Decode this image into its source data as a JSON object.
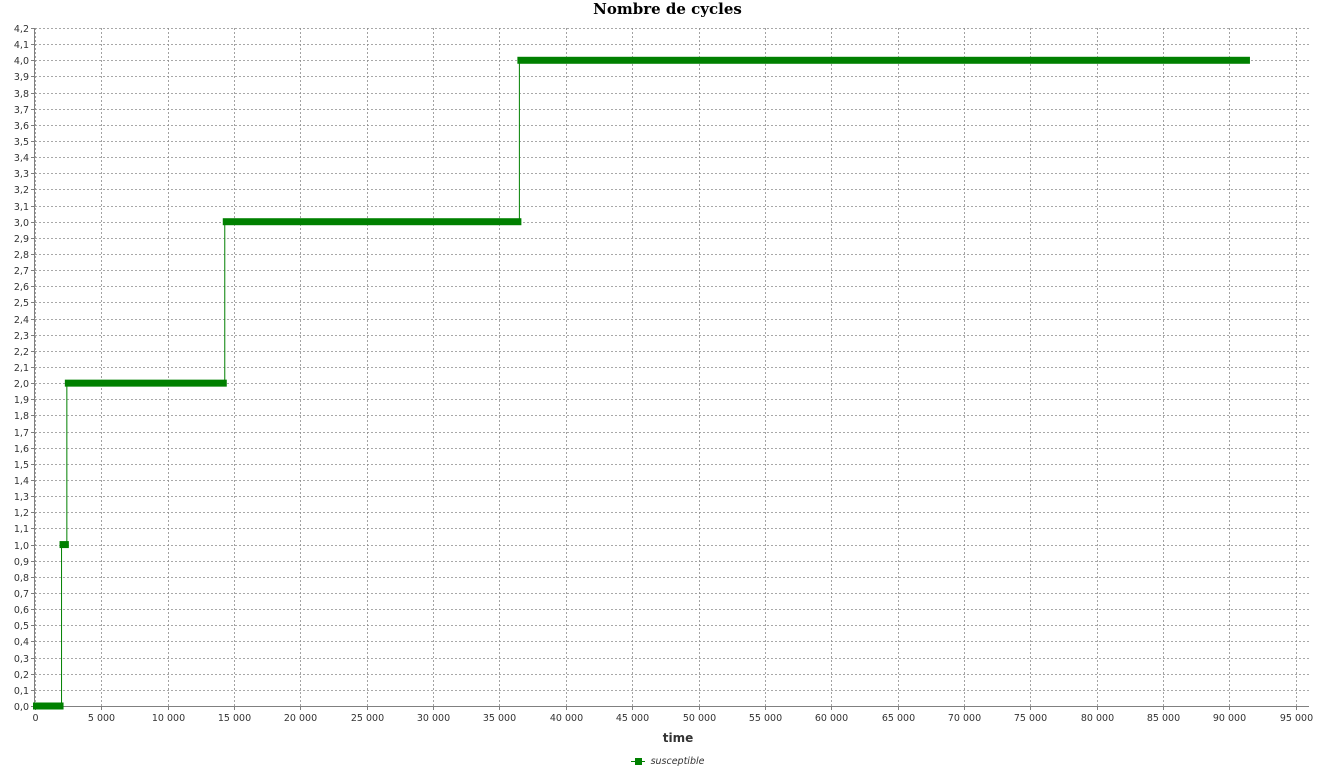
{
  "chart_data": {
    "type": "line",
    "title": "Nombre de cycles",
    "xlabel": "time",
    "ylabel": "",
    "xlim": [
      0,
      96000
    ],
    "ylim": [
      0,
      4.2
    ],
    "x_ticks": [
      0,
      5000,
      10000,
      15000,
      20000,
      25000,
      30000,
      35000,
      40000,
      45000,
      50000,
      55000,
      60000,
      65000,
      70000,
      75000,
      80000,
      85000,
      90000,
      95000
    ],
    "x_tick_labels": [
      "0",
      "5 000",
      "10 000",
      "15 000",
      "20 000",
      "25 000",
      "30 000",
      "35 000",
      "40 000",
      "45 000",
      "50 000",
      "55 000",
      "60 000",
      "65 000",
      "70 000",
      "75 000",
      "80 000",
      "85 000",
      "90 000",
      "95 000"
    ],
    "y_ticks": [
      0,
      0.1,
      0.2,
      0.3,
      0.4,
      0.5,
      0.6,
      0.7,
      0.8,
      0.9,
      1.0,
      1.1,
      1.2,
      1.3,
      1.4,
      1.5,
      1.6,
      1.7,
      1.8,
      1.9,
      2.0,
      2.1,
      2.2,
      2.3,
      2.4,
      2.5,
      2.6,
      2.7,
      2.8,
      2.9,
      3.0,
      3.1,
      3.2,
      3.3,
      3.4,
      3.5,
      3.6,
      3.7,
      3.8,
      3.9,
      4.0,
      4.1,
      4.2
    ],
    "y_tick_labels": [
      "0,0",
      "0,1",
      "0,2",
      "0,3",
      "0,4",
      "0,5",
      "0,6",
      "0,7",
      "0,8",
      "0,9",
      "1,0",
      "1,1",
      "1,2",
      "1,3",
      "1,4",
      "1,5",
      "1,6",
      "1,7",
      "1,8",
      "1,9",
      "2,0",
      "2,1",
      "2,2",
      "2,3",
      "2,4",
      "2,5",
      "2,6",
      "2,7",
      "2,8",
      "2,9",
      "3,0",
      "3,1",
      "3,2",
      "3,3",
      "3,4",
      "3,5",
      "3,6",
      "3,7",
      "3,8",
      "3,9",
      "4,0",
      "4,1",
      "4,2"
    ],
    "grid": true,
    "legend_position": "bottom-center",
    "series": [
      {
        "name": "susceptible",
        "color": "#008000",
        "segments": [
          {
            "x_start": 0,
            "x_end": 2000,
            "y": 0
          },
          {
            "x_start": 2000,
            "x_end": 2400,
            "y": 1
          },
          {
            "x_start": 2400,
            "x_end": 14300,
            "y": 2
          },
          {
            "x_start": 14300,
            "x_end": 36500,
            "y": 3
          },
          {
            "x_start": 36500,
            "x_end": 91400,
            "y": 4
          }
        ]
      }
    ]
  },
  "legend": {
    "items": [
      {
        "label": "susceptible",
        "color": "#008000"
      }
    ]
  }
}
